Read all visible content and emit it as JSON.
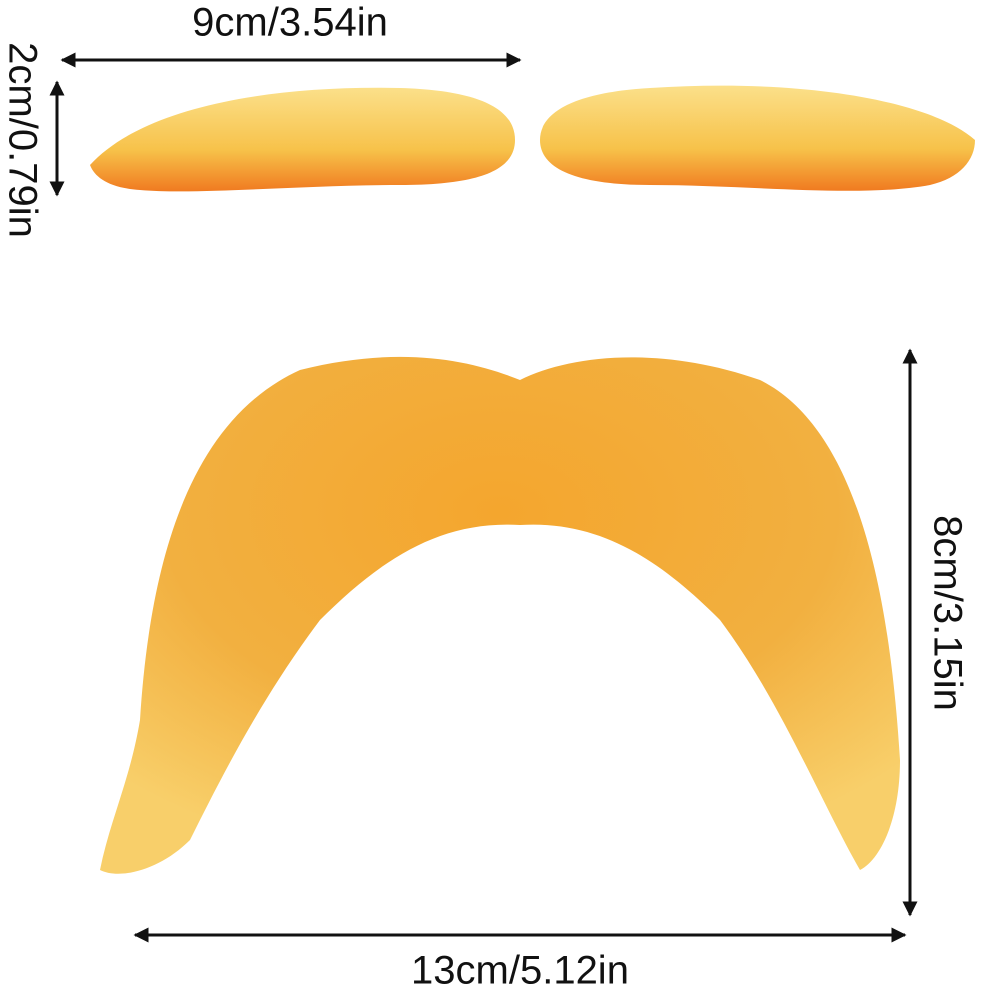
{
  "eyebrows": {
    "width_label": "9cm/3.54in",
    "height_label": "2cm/0.79in"
  },
  "mustache": {
    "height_label": "8cm/3.15in",
    "width_label": "13cm/5.12in"
  }
}
